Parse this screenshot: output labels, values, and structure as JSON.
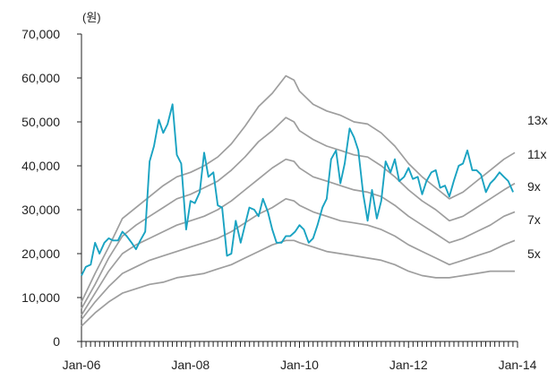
{
  "chart_data": {
    "type": "line",
    "y_unit_label": "(원)",
    "x_tick_labels": [
      "Jan-06",
      "Jan-08",
      "Jan-10",
      "Jan-12",
      "Jan-14"
    ],
    "x_tick_positions": [
      2006,
      2008,
      2010,
      2012,
      2014
    ],
    "xlim": [
      2006,
      2014
    ],
    "ylim": [
      0,
      70000
    ],
    "y_ticks": [
      0,
      10000,
      20000,
      30000,
      40000,
      50000,
      60000,
      70000
    ],
    "y_tick_labels": [
      "0",
      "10,000",
      "20,000",
      "30,000",
      "40,000",
      "50,000",
      "60,000",
      "70,000"
    ],
    "grid": false,
    "band_series_color": "#9e9e9e",
    "price_series_color": "#1aa3c2",
    "series": [
      {
        "name": "13x",
        "kind": "band",
        "x": [
          2006.0,
          2006.25,
          2006.5,
          2006.75,
          2007.0,
          2007.25,
          2007.5,
          2007.75,
          2008.0,
          2008.25,
          2008.5,
          2008.75,
          2009.0,
          2009.25,
          2009.5,
          2009.75,
          2009.9,
          2010.0,
          2010.25,
          2010.5,
          2010.75,
          2011.0,
          2011.25,
          2011.5,
          2011.75,
          2012.0,
          2012.25,
          2012.5,
          2012.75,
          2013.0,
          2013.25,
          2013.5,
          2013.75,
          2013.95
        ],
        "values": [
          9000,
          15500,
          21500,
          28000,
          30500,
          33000,
          35500,
          37500,
          38500,
          40000,
          42000,
          45000,
          49000,
          53500,
          56500,
          60500,
          59500,
          57000,
          54000,
          52500,
          51500,
          50000,
          49500,
          47500,
          44500,
          40500,
          37500,
          35000,
          32500,
          34000,
          36500,
          39000,
          41500,
          43000
        ]
      },
      {
        "name": "11x",
        "kind": "band",
        "x": [
          2006.0,
          2006.25,
          2006.5,
          2006.75,
          2007.0,
          2007.25,
          2007.5,
          2007.75,
          2008.0,
          2008.25,
          2008.5,
          2008.75,
          2009.0,
          2009.25,
          2009.5,
          2009.75,
          2009.9,
          2010.0,
          2010.25,
          2010.5,
          2010.75,
          2011.0,
          2011.25,
          2011.5,
          2011.75,
          2012.0,
          2012.25,
          2012.5,
          2012.75,
          2013.0,
          2013.25,
          2013.5,
          2013.75,
          2013.95
        ],
        "values": [
          7500,
          13000,
          19000,
          24000,
          26500,
          28500,
          30500,
          32500,
          33500,
          35000,
          36500,
          39000,
          42000,
          45500,
          48000,
          51000,
          50000,
          48000,
          46000,
          44500,
          43500,
          42500,
          42000,
          40000,
          37500,
          34500,
          32000,
          30000,
          27500,
          28500,
          30500,
          32500,
          34500,
          36000
        ]
      },
      {
        "name": "9x",
        "kind": "band",
        "x": [
          2006.0,
          2006.25,
          2006.5,
          2006.75,
          2007.0,
          2007.25,
          2007.5,
          2007.75,
          2008.0,
          2008.25,
          2008.5,
          2008.75,
          2009.0,
          2009.25,
          2009.5,
          2009.75,
          2009.9,
          2010.0,
          2010.25,
          2010.5,
          2010.75,
          2011.0,
          2011.25,
          2011.5,
          2011.75,
          2012.0,
          2012.25,
          2012.5,
          2012.75,
          2013.0,
          2013.25,
          2013.5,
          2013.75,
          2013.95
        ],
        "values": [
          6000,
          11000,
          16000,
          20000,
          22000,
          23500,
          25000,
          26500,
          27500,
          28500,
          30000,
          32000,
          34500,
          37000,
          39500,
          41500,
          41000,
          39500,
          37500,
          36500,
          35500,
          34500,
          34000,
          33000,
          31000,
          28500,
          26500,
          24500,
          22500,
          23500,
          25000,
          26500,
          28500,
          29500
        ]
      },
      {
        "name": "7x",
        "kind": "band",
        "x": [
          2006.0,
          2006.25,
          2006.5,
          2006.75,
          2007.0,
          2007.25,
          2007.5,
          2007.75,
          2008.0,
          2008.25,
          2008.5,
          2008.75,
          2009.0,
          2009.25,
          2009.5,
          2009.75,
          2009.9,
          2010.0,
          2010.25,
          2010.5,
          2010.75,
          2011.0,
          2011.25,
          2011.5,
          2011.75,
          2012.0,
          2012.25,
          2012.5,
          2012.75,
          2013.0,
          2013.25,
          2013.5,
          2013.75,
          2013.95
        ],
        "values": [
          5000,
          9000,
          12500,
          15500,
          17000,
          18500,
          19500,
          20500,
          21500,
          22500,
          23500,
          25000,
          27000,
          29000,
          30500,
          32500,
          32000,
          31000,
          29500,
          28500,
          27500,
          27000,
          26500,
          25500,
          24000,
          22000,
          20500,
          19000,
          17500,
          18500,
          19500,
          20500,
          22000,
          23000
        ]
      },
      {
        "name": "5x",
        "kind": "band",
        "x": [
          2006.0,
          2006.25,
          2006.5,
          2006.75,
          2007.0,
          2007.25,
          2007.5,
          2007.75,
          2008.0,
          2008.25,
          2008.5,
          2008.75,
          2009.0,
          2009.25,
          2009.5,
          2009.75,
          2009.9,
          2010.0,
          2010.25,
          2010.5,
          2010.75,
          2011.0,
          2011.25,
          2011.5,
          2011.75,
          2012.0,
          2012.25,
          2012.5,
          2012.75,
          2013.0,
          2013.25,
          2013.5,
          2013.75,
          2013.95
        ],
        "values": [
          3500,
          6500,
          9000,
          11000,
          12000,
          13000,
          13500,
          14500,
          15000,
          15500,
          16500,
          17500,
          19000,
          20500,
          22000,
          23000,
          23000,
          22500,
          21500,
          20500,
          20000,
          19500,
          19000,
          18500,
          17500,
          16000,
          15000,
          14500,
          14500,
          15000,
          15500,
          16000,
          16000,
          16000
        ]
      },
      {
        "name": "price",
        "kind": "price",
        "x": [
          2006.0,
          2006.08,
          2006.17,
          2006.25,
          2006.33,
          2006.42,
          2006.5,
          2006.58,
          2006.67,
          2006.75,
          2006.83,
          2006.92,
          2007.0,
          2007.08,
          2007.17,
          2007.25,
          2007.33,
          2007.42,
          2007.5,
          2007.58,
          2007.67,
          2007.75,
          2007.83,
          2007.92,
          2008.0,
          2008.08,
          2008.17,
          2008.25,
          2008.33,
          2008.42,
          2008.5,
          2008.58,
          2008.67,
          2008.75,
          2008.83,
          2008.92,
          2009.0,
          2009.08,
          2009.17,
          2009.25,
          2009.33,
          2009.42,
          2009.5,
          2009.58,
          2009.67,
          2009.75,
          2009.83,
          2009.92,
          2010.0,
          2010.08,
          2010.17,
          2010.25,
          2010.33,
          2010.42,
          2010.5,
          2010.58,
          2010.67,
          2010.75,
          2010.83,
          2010.92,
          2011.0,
          2011.08,
          2011.17,
          2011.25,
          2011.33,
          2011.42,
          2011.5,
          2011.58,
          2011.67,
          2011.75,
          2011.83,
          2011.92,
          2012.0,
          2012.08,
          2012.17,
          2012.25,
          2012.33,
          2012.42,
          2012.5,
          2012.58,
          2012.67,
          2012.75,
          2012.83,
          2012.92,
          2013.0,
          2013.08,
          2013.17,
          2013.25,
          2013.33,
          2013.42,
          2013.5,
          2013.58,
          2013.67,
          2013.75,
          2013.83,
          2013.92
        ],
        "values": [
          15000,
          17000,
          17500,
          22500,
          20000,
          22500,
          23500,
          23000,
          23000,
          25000,
          24000,
          22500,
          21000,
          23000,
          25000,
          41000,
          44500,
          50500,
          47500,
          49500,
          54000,
          42500,
          40500,
          25500,
          32000,
          31500,
          34000,
          43000,
          37500,
          38500,
          31000,
          30500,
          19500,
          20000,
          27500,
          22500,
          26500,
          30500,
          30000,
          28500,
          32500,
          29500,
          25500,
          22500,
          22500,
          24000,
          24000,
          25000,
          26500,
          25500,
          22500,
          23500,
          26500,
          30500,
          32500,
          41500,
          43500,
          36000,
          40500,
          48500,
          46500,
          43500,
          33500,
          27500,
          34500,
          28000,
          32000,
          41000,
          38500,
          41500,
          36500,
          37500,
          39500,
          37000,
          37500,
          33500,
          36500,
          38500,
          39000,
          35000,
          35500,
          33000,
          36500,
          40000,
          40500,
          43500,
          39000,
          39000,
          38000,
          34000,
          36000,
          37000,
          38500,
          37500,
          36500,
          34000
        ]
      }
    ]
  }
}
